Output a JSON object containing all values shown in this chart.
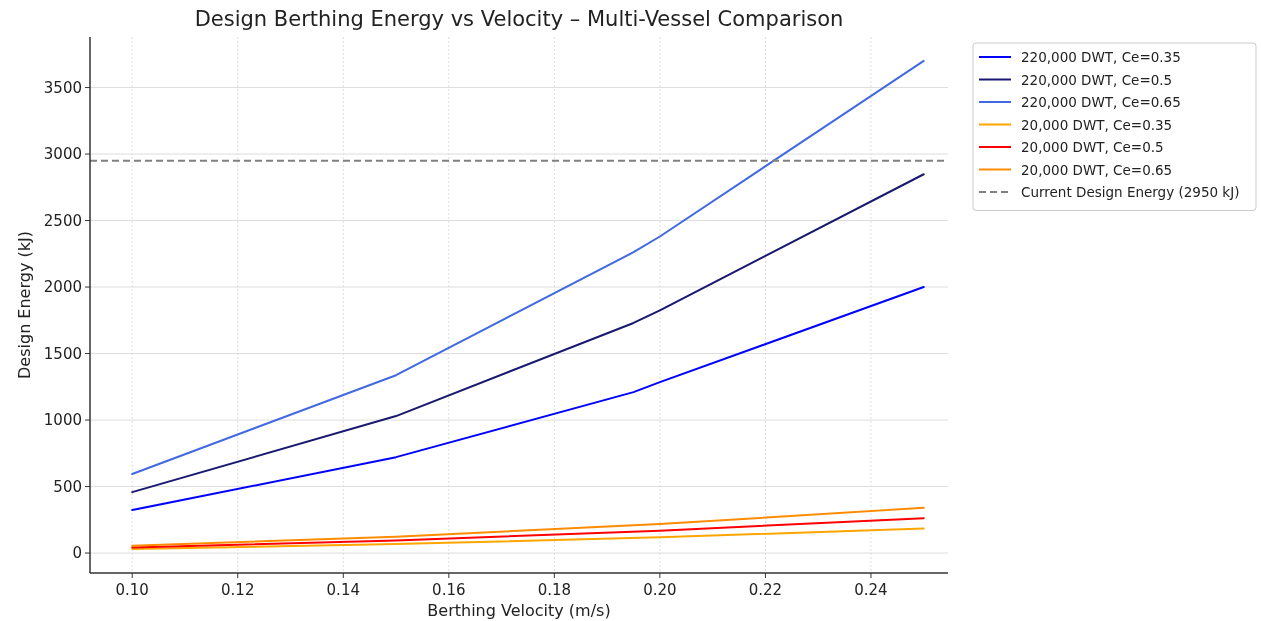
{
  "chart_data": {
    "type": "line",
    "title": "Design Berthing Energy vs Velocity – Multi-Vessel Comparison",
    "xlabel": "Berthing Velocity (m/s)",
    "ylabel": "Design Energy (kJ)",
    "x": [
      0.1,
      0.15,
      0.195,
      0.2,
      0.25
    ],
    "xlim": [
      0.092,
      0.2546
    ],
    "xticks": [
      {
        "value": 0.1,
        "label": "0.10"
      },
      {
        "value": 0.12,
        "label": "0.12"
      },
      {
        "value": 0.14,
        "label": "0.14"
      },
      {
        "value": 0.16,
        "label": "0.16"
      },
      {
        "value": 0.18,
        "label": "0.18"
      },
      {
        "value": 0.2,
        "label": "0.20"
      },
      {
        "value": 0.22,
        "label": "0.22"
      },
      {
        "value": 0.24,
        "label": "0.24"
      }
    ],
    "ylim": [
      -150,
      3880
    ],
    "yticks": [
      0,
      500,
      1000,
      1500,
      2000,
      2500,
      3000,
      3500
    ],
    "grid": true,
    "legend": "top right",
    "line_style": "solid",
    "marker": "none",
    "series": [
      {
        "name": "220,000 DWT, Ce=0.35",
        "color": "#0000ff",
        "values": [
          323,
          721,
          1210,
          1285,
          2000
        ]
      },
      {
        "name": "220,000 DWT, Ce=0.5",
        "color": "#191970",
        "values": [
          458,
          1030,
          1730,
          1825,
          2848
        ]
      },
      {
        "name": "220,000 DWT, Ce=0.65",
        "color": "#4169e1",
        "values": [
          594,
          1337,
          2262,
          2380,
          3700
        ]
      },
      {
        "name": "20,000 DWT, Ce=0.35",
        "color": "#ffa500",
        "x": [
          0.1,
          0.15,
          0.2,
          0.25
        ],
        "values": [
          30,
          68,
          118,
          185
        ]
      },
      {
        "name": "20,000 DWT, Ce=0.5",
        "color": "#ff0000",
        "x": [
          0.1,
          0.15,
          0.2,
          0.25
        ],
        "values": [
          42,
          95,
          168,
          262
        ]
      },
      {
        "name": "20,000 DWT, Ce=0.65",
        "color": "#ff8c00",
        "x": [
          0.1,
          0.15,
          0.2,
          0.25
        ],
        "values": [
          55,
          123,
          218,
          340
        ]
      }
    ],
    "ref_lines": [
      {
        "axis": "y",
        "value": 2950,
        "label": "Current Design Energy (2950 kJ)",
        "color": "#808080",
        "line_style": "dashed"
      }
    ]
  }
}
